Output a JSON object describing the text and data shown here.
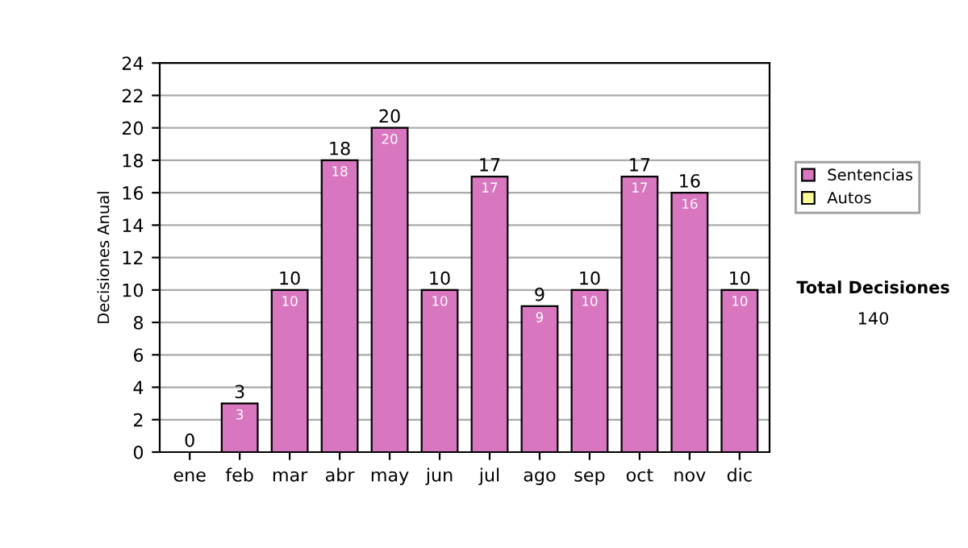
{
  "chart_data": {
    "type": "bar",
    "ylabel": "Decisiones Anual",
    "stacked": true,
    "categories": [
      "ene",
      "feb",
      "mar",
      "abr",
      "may",
      "jun",
      "jul",
      "ago",
      "sep",
      "oct",
      "nov",
      "dic"
    ],
    "series": [
      {
        "name": "Sentencias",
        "color": "#d877c0",
        "values": [
          0,
          3,
          10,
          18,
          20,
          10,
          17,
          9,
          10,
          17,
          16,
          10
        ],
        "value_labels": [
          null,
          "3",
          "10",
          "18",
          "20",
          "10",
          "17",
          "9",
          "10",
          "17",
          "16",
          "10"
        ]
      },
      {
        "name": "Autos",
        "color": "#ffff99",
        "values": [
          0,
          0,
          0,
          0,
          0,
          0,
          0,
          0,
          0,
          0,
          0,
          0
        ]
      }
    ],
    "totals": [
      "0",
      "3",
      "10",
      "18",
      "20",
      "10",
      "17",
      "9",
      "10",
      "17",
      "16",
      "10"
    ],
    "ylim": [
      0,
      24
    ],
    "yticks": [
      0,
      2,
      4,
      6,
      8,
      10,
      12,
      14,
      16,
      18,
      20,
      22,
      24
    ],
    "grid": "y",
    "legend": "right",
    "annotations": [
      "Total Decisiones",
      "140"
    ]
  }
}
